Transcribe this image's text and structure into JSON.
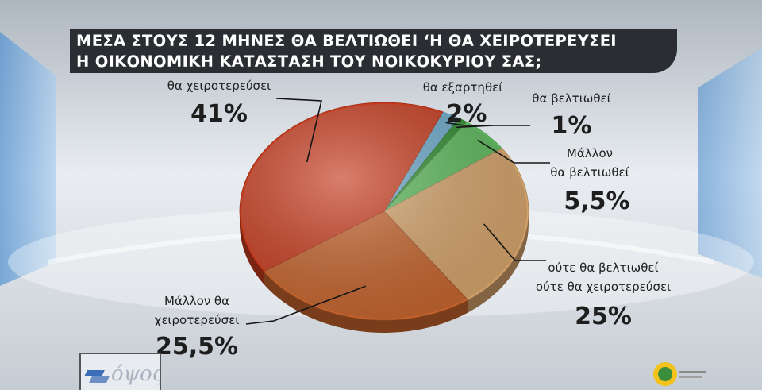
{
  "title": {
    "line1": "ΜΕΣΑ ΣΤΟΥΣ 12 ΜΗΝΕΣ ΘΑ ΒΕΛΤΙΩΘΕΙ ‘Η ΘΑ ΧΕΙΡΟΤΕΡΕΥΣΕΙ",
    "line2": "Η ΟΙΚΟΝΟΜΙΚΗ ΚΑΤΑΣΤΑΣΗ ΤΟΥ ΝΟΙΚΟΚΥΡΙΟΥ ΣΑΣ;"
  },
  "colors": {
    "title_bg": "#2a2d31",
    "slice_worse": "#c53a1d",
    "slice_depends": "#6aa7c8",
    "slice_better": "#2e8b2e",
    "slice_rather_better": "#5cb85c",
    "slice_neither": "#d3a26a",
    "slice_rather_worse": "#c4632c"
  },
  "logos": {
    "left_icon": "channel-logo-icon",
    "left_word": "όψος",
    "right_icon": "pollster-logo-icon"
  },
  "chart_data": {
    "type": "pie",
    "title": "ΜΕΣΑ ΣΤΟΥΣ 12 ΜΗΝΕΣ ΘΑ ΒΕΛΤΙΩΘΕΙ ‘Η ΘΑ ΧΕΙΡΟΤΕΡΕΥΣΕΙ Η ΟΙΚΟΝΟΜΙΚΗ ΚΑΤΑΣΤΑΣΗ ΤΟΥ ΝΟΙΚΟΚΥΡΙΟΥ ΣΑΣ;",
    "slices": [
      {
        "key": "worse",
        "label_lines": [
          "θα χειροτερεύσει"
        ],
        "value": 41,
        "value_label": "41%",
        "color": "#c53a1d"
      },
      {
        "key": "depends",
        "label_lines": [
          "θα εξαρτηθεί"
        ],
        "value": 2,
        "value_label": "2%",
        "color": "#6aa7c8"
      },
      {
        "key": "better",
        "label_lines": [
          "θα βελτιωθεί"
        ],
        "value": 1,
        "value_label": "1%",
        "color": "#2e8b2e"
      },
      {
        "key": "rather_better",
        "label_lines": [
          "Μάλλον",
          "θα βελτιωθεί"
        ],
        "value": 5.5,
        "value_label": "5,5%",
        "color": "#5cb85c"
      },
      {
        "key": "neither",
        "label_lines": [
          "ούτε θα βελτιωθεί",
          "ούτε θα χειροτερεύσει"
        ],
        "value": 25,
        "value_label": "25%",
        "color": "#d3a26a"
      },
      {
        "key": "rather_worse",
        "label_lines": [
          "Μάλλον θα",
          "χειροτερεύσει"
        ],
        "value": 25.5,
        "value_label": "25,5%",
        "color": "#c4632c"
      }
    ]
  }
}
